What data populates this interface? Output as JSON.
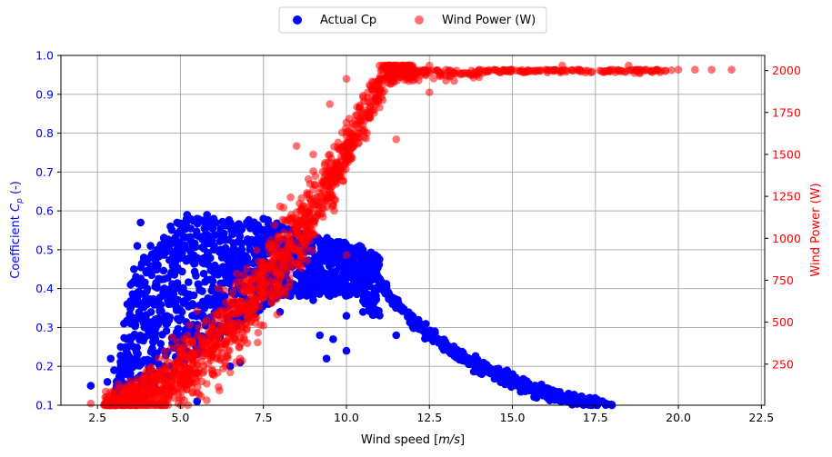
{
  "colors": {
    "cp_series": "#0000ff",
    "power_series": "#ff0000",
    "grid": "#b0b0b0",
    "left_axis_text": "#0000ff",
    "right_axis_text": "#ff0000"
  },
  "chart_data": {
    "type": "scatter",
    "title": "",
    "xlabel": "Wind speed [m/s]",
    "xlabel_parts": {
      "prefix": "Wind speed [",
      "unit": "m/s",
      "suffix": "]"
    },
    "ylabel_left": "Coefficient Cp (-)",
    "ylabel_left_parts": {
      "prefix": "Coefficient ",
      "symbol": "C",
      "sub": "p",
      "suffix": " (-)"
    },
    "ylabel_right": "Wind Power (W)",
    "xlim": [
      1.4,
      22.6
    ],
    "ylim_left": [
      0.1,
      1.0
    ],
    "ylim_right": [
      5,
      2090
    ],
    "grid": true,
    "legend_placement": "top-center, outside plot",
    "x_ticks": [
      "2.5",
      "5.0",
      "7.5",
      "10.0",
      "12.5",
      "15.0",
      "17.5",
      "20.0",
      "22.5"
    ],
    "x_tick_values": [
      2.5,
      5.0,
      7.5,
      10.0,
      12.5,
      15.0,
      17.5,
      20.0,
      22.5
    ],
    "y_left_ticks": [
      "0.1",
      "0.2",
      "0.3",
      "0.4",
      "0.5",
      "0.6",
      "0.7",
      "0.8",
      "0.9",
      "1.0"
    ],
    "y_left_tick_values": [
      0.1,
      0.2,
      0.3,
      0.4,
      0.5,
      0.6,
      0.7,
      0.8,
      0.9,
      1.0
    ],
    "y_right_ticks": [
      "250",
      "500",
      "750",
      "1000",
      "1250",
      "1500",
      "1750",
      "2000"
    ],
    "y_right_tick_values": [
      250,
      500,
      750,
      1000,
      1250,
      1500,
      1750,
      2000
    ],
    "series": [
      {
        "name": "Actual Cp",
        "axis": "left",
        "color": "#0000ff",
        "alpha": 1.0,
        "points": [
          [
            2.3,
            0.15
          ],
          [
            2.8,
            0.16
          ],
          [
            2.9,
            0.22
          ],
          [
            3.0,
            0.19
          ],
          [
            3.2,
            0.25
          ],
          [
            3.3,
            0.31
          ],
          [
            3.4,
            0.36
          ],
          [
            3.5,
            0.41
          ],
          [
            3.6,
            0.45
          ],
          [
            3.7,
            0.51
          ],
          [
            3.8,
            0.57
          ],
          [
            3.9,
            0.48
          ],
          [
            4.0,
            0.4
          ],
          [
            4.1,
            0.51
          ],
          [
            4.3,
            0.5
          ],
          [
            4.5,
            0.53
          ],
          [
            4.7,
            0.56
          ],
          [
            4.9,
            0.57
          ],
          [
            5.0,
            0.55
          ],
          [
            5.2,
            0.59
          ],
          [
            5.5,
            0.58
          ],
          [
            5.8,
            0.59
          ],
          [
            6.0,
            0.58
          ],
          [
            6.5,
            0.57
          ],
          [
            7.0,
            0.57
          ],
          [
            7.5,
            0.58
          ],
          [
            8.0,
            0.56
          ],
          [
            8.5,
            0.55
          ],
          [
            9.0,
            0.53
          ],
          [
            9.5,
            0.52
          ],
          [
            10.0,
            0.51
          ],
          [
            10.5,
            0.47
          ],
          [
            11.0,
            0.42
          ],
          [
            11.5,
            0.37
          ],
          [
            12.0,
            0.32
          ],
          [
            12.5,
            0.28
          ],
          [
            13.0,
            0.25
          ],
          [
            13.5,
            0.225
          ],
          [
            14.0,
            0.2
          ],
          [
            14.5,
            0.185
          ],
          [
            15.0,
            0.17
          ],
          [
            15.5,
            0.155
          ],
          [
            16.0,
            0.14
          ],
          [
            16.5,
            0.125
          ],
          [
            17.0,
            0.115
          ],
          [
            17.5,
            0.105
          ],
          [
            18.0,
            0.1
          ],
          [
            3.5,
            0.12
          ],
          [
            4.0,
            0.15
          ],
          [
            4.5,
            0.2
          ],
          [
            5.0,
            0.26
          ],
          [
            5.5,
            0.11
          ],
          [
            5.5,
            0.28
          ],
          [
            6.0,
            0.3
          ],
          [
            6.5,
            0.2
          ],
          [
            6.8,
            0.21
          ],
          [
            7.0,
            0.33
          ],
          [
            8.0,
            0.34
          ],
          [
            9.0,
            0.37
          ],
          [
            9.2,
            0.28
          ],
          [
            9.4,
            0.22
          ],
          [
            9.6,
            0.27
          ],
          [
            10.0,
            0.24
          ],
          [
            10.0,
            0.33
          ],
          [
            10.5,
            0.34
          ],
          [
            11.5,
            0.28
          ],
          [
            6.0,
            0.5
          ],
          [
            7.0,
            0.48
          ],
          [
            8.0,
            0.47
          ],
          [
            9.0,
            0.45
          ],
          [
            10.0,
            0.43
          ],
          [
            10.2,
            0.5
          ],
          [
            9.8,
            0.52
          ]
        ]
      },
      {
        "name": "Wind Power (W)",
        "axis": "right",
        "color": "#ff0000",
        "alpha": 0.55,
        "points": [
          [
            2.3,
            15
          ],
          [
            2.7,
            10
          ],
          [
            3.0,
            20
          ],
          [
            3.5,
            40
          ],
          [
            4.0,
            70
          ],
          [
            4.5,
            110
          ],
          [
            5.0,
            175
          ],
          [
            5.5,
            250
          ],
          [
            6.0,
            340
          ],
          [
            6.5,
            450
          ],
          [
            7.0,
            580
          ],
          [
            7.5,
            730
          ],
          [
            8.0,
            900
          ],
          [
            8.5,
            1090
          ],
          [
            9.0,
            1290
          ],
          [
            9.5,
            1500
          ],
          [
            10.0,
            1690
          ],
          [
            10.5,
            1850
          ],
          [
            11.0,
            1950
          ],
          [
            11.5,
            1990
          ],
          [
            12.0,
            2000
          ],
          [
            13.0,
            2005
          ],
          [
            14.0,
            2005
          ],
          [
            15.0,
            2005
          ],
          [
            16.0,
            2005
          ],
          [
            17.0,
            2005
          ],
          [
            18.0,
            2005
          ],
          [
            19.0,
            2005
          ],
          [
            20.0,
            2005
          ],
          [
            20.5,
            2005
          ],
          [
            21.0,
            2005
          ],
          [
            21.6,
            2005
          ],
          [
            4.0,
            20
          ],
          [
            5.5,
            80
          ],
          [
            6.5,
            200
          ],
          [
            7.5,
            480
          ],
          [
            8.5,
            850
          ],
          [
            9.0,
            1500
          ],
          [
            9.5,
            1800
          ],
          [
            10.0,
            900
          ],
          [
            10.0,
            1950
          ],
          [
            11.0,
            1780
          ],
          [
            11.5,
            1590
          ],
          [
            12.5,
            1870
          ],
          [
            13.0,
            1940
          ],
          [
            14.0,
            1960
          ],
          [
            6.0,
            430
          ],
          [
            7.0,
            820
          ],
          [
            8.0,
            1190
          ],
          [
            9.0,
            1400
          ],
          [
            8.5,
            1550
          ],
          [
            5.0,
            330
          ],
          [
            11.0,
            2030
          ],
          [
            12.5,
            2030
          ],
          [
            16.5,
            2030
          ],
          [
            18.5,
            2030
          ]
        ]
      }
    ]
  }
}
